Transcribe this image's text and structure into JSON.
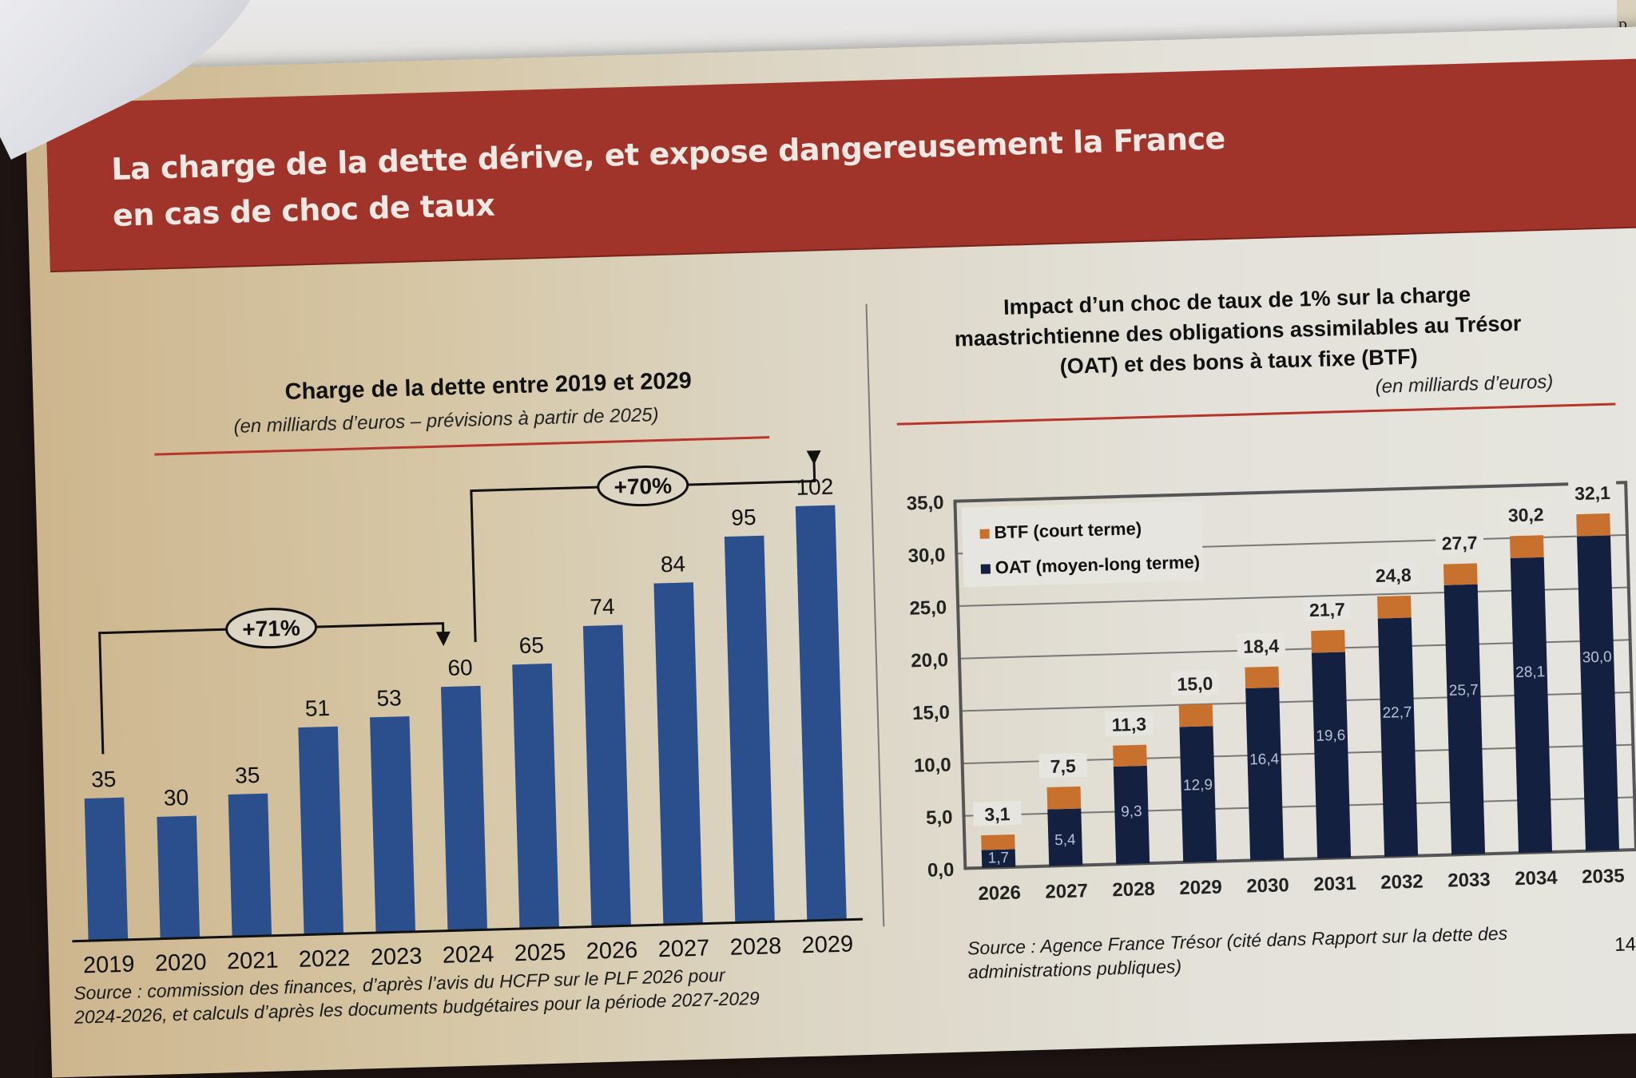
{
  "banner": {
    "title_line1": "La charge de la dette dérive, et expose dangereusement la France",
    "title_line2": "en cas de choc de taux"
  },
  "page_number": "14",
  "chart_data": [
    {
      "type": "bar",
      "title": "Charge de la dette entre 2019 et 2029",
      "subtitle": "(en milliards d’euros – prévisions à partir de 2025)",
      "categories": [
        "2019",
        "2020",
        "2021",
        "2022",
        "2023",
        "2024",
        "2025",
        "2026",
        "2027",
        "2028",
        "2029"
      ],
      "values": [
        35,
        30,
        35,
        51,
        53,
        60,
        65,
        74,
        84,
        95,
        102
      ],
      "value_labels": [
        "35",
        "30",
        "35",
        "51",
        "53",
        "60",
        "65",
        "74",
        "84",
        "95",
        "102"
      ],
      "xlabel": "",
      "ylabel": "",
      "ylim": [
        0,
        110
      ],
      "grid": false,
      "bar_color": "#2a4f8c",
      "annotations": [
        {
          "label": "+71%",
          "from": "2019",
          "to": "2024"
        },
        {
          "label": "+70%",
          "from": "2024",
          "to": "2029"
        }
      ],
      "source": "Source : commission des finances, d’après l’avis du HCFP sur le PLF 2026 pour 2024-2026, et calculs d’après les documents budgétaires pour la période 2027-2029",
      "source_line1": "Source : commission des finances, d’après l’avis du HCFP sur le PLF 2026 pour",
      "source_line2": "2024-2026, et calculs d’après les documents budgétaires pour la période 2027-2029"
    },
    {
      "type": "bar",
      "stacked": true,
      "title": "Impact d’un choc de taux de 1% sur la charge maastrichtienne des obligations assimilables au Trésor (OAT) et des bons à taux fixe (BTF)",
      "title_line1": "Impact d’un choc de taux de 1% sur la charge",
      "title_line2": "maastrichtienne des obligations assimilables au Trésor",
      "title_line3": "(OAT) et des bons à taux fixe (BTF)",
      "subtitle": "(en milliards d’euros)",
      "categories": [
        "2026",
        "2027",
        "2028",
        "2029",
        "2030",
        "2031",
        "2032",
        "2033",
        "2034",
        "2035"
      ],
      "series": [
        {
          "name": "OAT (moyen-long terme)",
          "color": "#14203f",
          "values": [
            1.7,
            5.4,
            9.3,
            12.9,
            16.4,
            19.6,
            22.7,
            25.7,
            28.1,
            30.0
          ],
          "labels": [
            "1,7",
            "5,4",
            "9,3",
            "12,9",
            "16,4",
            "19,6",
            "22,7",
            "25,7",
            "28,1",
            "30,0"
          ]
        },
        {
          "name": "BTF (court terme)",
          "color": "#c8712f",
          "values": [
            1.4,
            2.1,
            2.0,
            2.1,
            2.0,
            2.1,
            2.1,
            2.0,
            2.1,
            2.1
          ]
        }
      ],
      "totals": [
        3.1,
        7.5,
        11.3,
        15.0,
        18.4,
        21.7,
        24.8,
        27.7,
        30.2,
        32.1
      ],
      "total_labels": [
        "3,1",
        "7,5",
        "11,3",
        "15,0",
        "18,4",
        "21,7",
        "24,8",
        "27,7",
        "30,2",
        "32,1"
      ],
      "legend": [
        "BTF (court terme)",
        "OAT (moyen-long terme)"
      ],
      "legend_position": "top-left",
      "yticks": [
        "0,0",
        "5,0",
        "10,0",
        "15,0",
        "20,0",
        "25,0",
        "30,0",
        "35,0"
      ],
      "ylim": [
        0,
        35
      ],
      "grid": true,
      "source_line1": "Source : Agence France Trésor (cité dans Rapport sur la dette des",
      "source_line2": "administrations publiques)"
    }
  ]
}
